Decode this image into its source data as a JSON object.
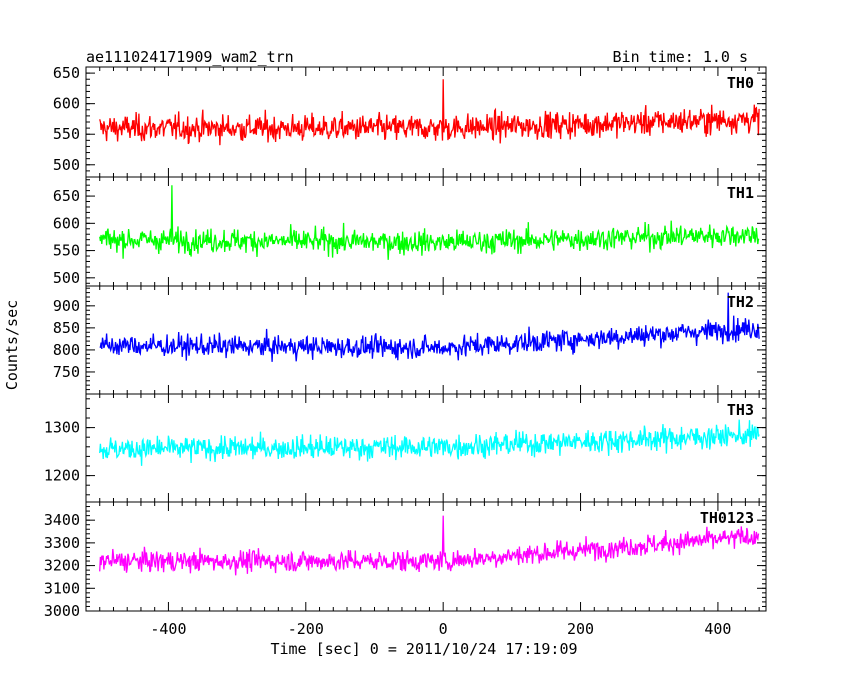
{
  "chart_data": {
    "type": "line",
    "title": "ae111024171909_wam2_trn",
    "subtitle": "Bin time: 1.0 s",
    "xlabel": "Time [sec] 0 = 2011/10/24 17:19:09",
    "ylabel": "Counts/sec",
    "xlim": [
      -520,
      470
    ],
    "data_range": [
      -500,
      460
    ],
    "x_ticks": [
      -400,
      -200,
      0,
      200,
      400
    ],
    "grid": false,
    "legend": "in-panel labels, top-right",
    "panels": [
      {
        "name": "TH0",
        "color": "#ff0000",
        "ylim": [
          480,
          660
        ],
        "y_ticks": [
          500,
          550,
          600,
          650
        ],
        "base": 560,
        "noise": 28,
        "trend": [
          [
            -500,
            560
          ],
          [
            0,
            560
          ],
          [
            460,
            575
          ]
        ],
        "spikes": [
          {
            "x": 0,
            "value": 640
          }
        ]
      },
      {
        "name": "TH1",
        "color": "#00ff00",
        "ylim": [
          485,
          685
        ],
        "y_ticks": [
          500,
          550,
          600,
          650
        ],
        "base": 570,
        "noise": 28,
        "trend": [
          [
            -500,
            570
          ],
          [
            0,
            565
          ],
          [
            460,
            580
          ]
        ],
        "spikes": [
          {
            "x": -395,
            "value": 670
          }
        ]
      },
      {
        "name": "TH2",
        "color": "#0000ff",
        "ylim": [
          700,
          945
        ],
        "y_ticks": [
          750,
          800,
          850,
          900
        ],
        "base": 810,
        "noise": 32,
        "trend": [
          [
            -500,
            810
          ],
          [
            0,
            805
          ],
          [
            460,
            850
          ]
        ],
        "spikes": [
          {
            "x": 415,
            "value": 930
          }
        ]
      },
      {
        "name": "TH3",
        "color": "#00ffff",
        "ylim": [
          1145,
          1370
        ],
        "y_ticks": [
          1200,
          1300
        ],
        "base": 1260,
        "noise": 32,
        "trend": [
          [
            -500,
            1255
          ],
          [
            0,
            1260
          ],
          [
            460,
            1285
          ]
        ],
        "spikes": []
      },
      {
        "name": "TH0123",
        "color": "#ff00ff",
        "ylim": [
          3000,
          3480
        ],
        "y_ticks": [
          3000,
          3100,
          3200,
          3300,
          3400
        ],
        "base": 3220,
        "noise": 60,
        "trend": [
          [
            -500,
            3220
          ],
          [
            0,
            3220
          ],
          [
            460,
            3330
          ]
        ],
        "spikes": [
          {
            "x": 0,
            "value": 3420
          }
        ]
      }
    ]
  }
}
